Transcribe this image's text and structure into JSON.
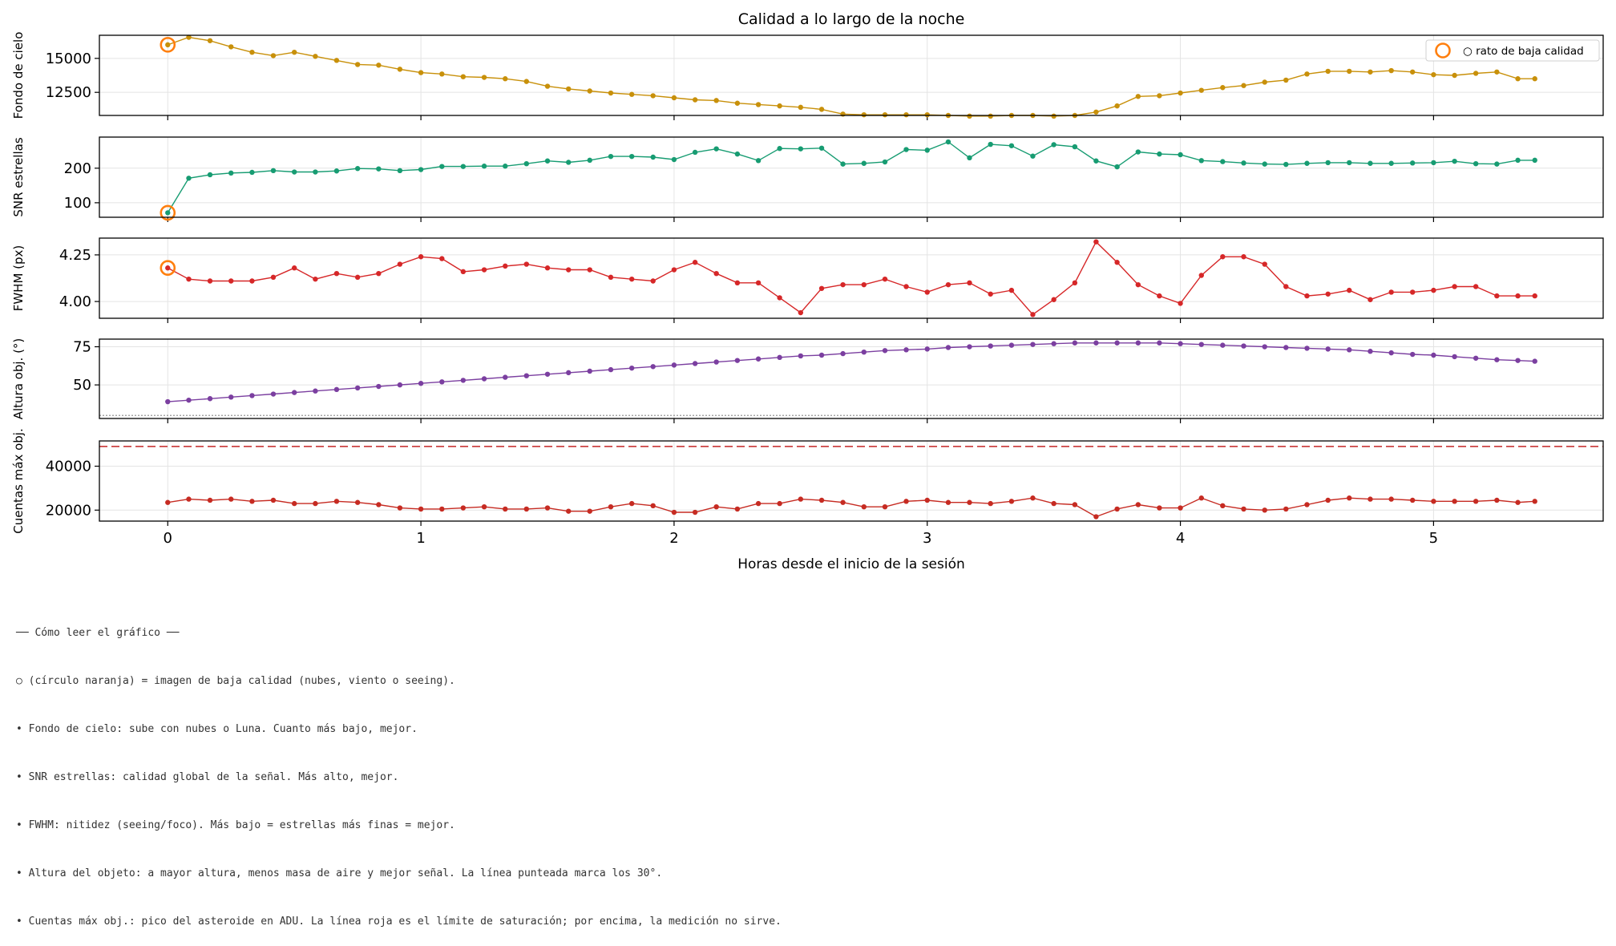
{
  "figure": {
    "title": "Calidad a lo largo de la noche",
    "xlabel": "Horas desde el inicio de la sesión",
    "legend_label": "○ rato de baja calidad"
  },
  "colors": {
    "sky": "#c8900a",
    "snr": "#179c72",
    "fwhm": "#d62728",
    "alt": "#7b3fa0",
    "counts": "#c62b22",
    "lowq": "#ff7f0e",
    "saturation": "#cc4444"
  },
  "chart_data": [
    {
      "type": "line",
      "ylabel": "Fondo de cielo",
      "yticks": [
        12500,
        15000
      ],
      "ylim": [
        10800,
        16700
      ],
      "xlim": [
        -0.27,
        5.67
      ],
      "xticks": [
        0,
        1,
        2,
        3,
        4,
        5
      ],
      "legend": "top-right",
      "series": [
        {
          "x": [
            0,
            0.083,
            0.167,
            0.25,
            0.333,
            0.417,
            0.5,
            0.583,
            0.667,
            0.75,
            0.833,
            0.917,
            1,
            1.083,
            1.167,
            1.25,
            1.333,
            1.417,
            1.5,
            1.583,
            1.667,
            1.75,
            1.833,
            1.917,
            2,
            2.083,
            2.167,
            2.25,
            2.333,
            2.417,
            2.5,
            2.583,
            2.667,
            2.75,
            2.833,
            2.917,
            3,
            3.083,
            3.167,
            3.25,
            3.333,
            3.417,
            3.5,
            3.583,
            3.667,
            3.75,
            3.833,
            3.917,
            4,
            4.083,
            4.167,
            4.25,
            4.333,
            4.417,
            4.5,
            4.583,
            4.667,
            4.75,
            4.833,
            4.917,
            5,
            5.083,
            5.167,
            5.25,
            5.333,
            5.4
          ],
          "values": [
            16000,
            16550,
            16300,
            15850,
            15450,
            15200,
            15450,
            15150,
            14850,
            14550,
            14500,
            14200,
            13950,
            13850,
            13650,
            13600,
            13500,
            13300,
            12950,
            12750,
            12600,
            12450,
            12350,
            12250,
            12100,
            11950,
            11900,
            11700,
            11600,
            11500,
            11400,
            11250,
            10900,
            10850,
            10850,
            10850,
            10850,
            10800,
            10750,
            10750,
            10800,
            10800,
            10750,
            10800,
            11050,
            11500,
            12200,
            12250,
            12450,
            12650,
            12850,
            13000,
            13250,
            13400,
            13850,
            14050,
            14050,
            14000,
            14100,
            14000,
            13800,
            13750,
            13900,
            14000,
            13500,
            13500
          ]
        }
      ],
      "lowq": [
        {
          "x": 0,
          "y": 16000
        }
      ]
    },
    {
      "type": "line",
      "ylabel": "SNR estrellas",
      "yticks": [
        100,
        200
      ],
      "ylim": [
        58,
        290
      ],
      "xlim": [
        -0.27,
        5.67
      ],
      "xticks": [
        0,
        1,
        2,
        3,
        4,
        5
      ],
      "series": [
        {
          "x": [
            0,
            0.083,
            0.167,
            0.25,
            0.333,
            0.417,
            0.5,
            0.583,
            0.667,
            0.75,
            0.833,
            0.917,
            1,
            1.083,
            1.167,
            1.25,
            1.333,
            1.417,
            1.5,
            1.583,
            1.667,
            1.75,
            1.833,
            1.917,
            2,
            2.083,
            2.167,
            2.25,
            2.333,
            2.417,
            2.5,
            2.583,
            2.667,
            2.75,
            2.833,
            2.917,
            3,
            3.083,
            3.167,
            3.25,
            3.333,
            3.417,
            3.5,
            3.583,
            3.667,
            3.75,
            3.833,
            3.917,
            4,
            4.083,
            4.167,
            4.25,
            4.333,
            4.417,
            4.5,
            4.583,
            4.667,
            4.75,
            4.833,
            4.917,
            5,
            5.083,
            5.167,
            5.25,
            5.333,
            5.4
          ],
          "values": [
            71,
            171,
            181,
            186,
            188,
            193,
            189,
            189,
            192,
            199,
            198,
            193,
            196,
            205,
            205,
            206,
            206,
            213,
            221,
            217,
            223,
            234,
            234,
            232,
            225,
            246,
            256,
            241,
            222,
            257,
            256,
            258,
            212,
            214,
            218,
            254,
            252,
            276,
            230,
            269,
            265,
            235,
            268,
            262,
            221,
            204,
            247,
            241,
            239,
            222,
            219,
            215,
            212,
            211,
            214,
            216,
            216,
            214,
            214,
            215,
            216,
            220,
            213,
            212,
            223,
            223
          ]
        }
      ],
      "lowq": [
        {
          "x": 0,
          "y": 71
        }
      ]
    },
    {
      "type": "line",
      "ylabel": "FWHM (px)",
      "yticks": [
        4.0,
        4.25
      ],
      "ylim": [
        3.91,
        4.34
      ],
      "xlim": [
        -0.27,
        5.67
      ],
      "xticks": [
        0,
        1,
        2,
        3,
        4,
        5
      ],
      "tick_format": "2dp",
      "series": [
        {
          "x": [
            0,
            0.083,
            0.167,
            0.25,
            0.333,
            0.417,
            0.5,
            0.583,
            0.667,
            0.75,
            0.833,
            0.917,
            1,
            1.083,
            1.167,
            1.25,
            1.333,
            1.417,
            1.5,
            1.583,
            1.667,
            1.75,
            1.833,
            1.917,
            2,
            2.083,
            2.167,
            2.25,
            2.333,
            2.417,
            2.5,
            2.583,
            2.667,
            2.75,
            2.833,
            2.917,
            3,
            3.083,
            3.167,
            3.25,
            3.333,
            3.417,
            3.5,
            3.583,
            3.667,
            3.75,
            3.833,
            3.917,
            4,
            4.083,
            4.167,
            4.25,
            4.333,
            4.417,
            4.5,
            4.583,
            4.667,
            4.75,
            4.833,
            4.917,
            5,
            5.083,
            5.167,
            5.25,
            5.333,
            5.4
          ],
          "values": [
            4.18,
            4.12,
            4.11,
            4.11,
            4.11,
            4.13,
            4.18,
            4.12,
            4.15,
            4.13,
            4.15,
            4.2,
            4.24,
            4.23,
            4.16,
            4.17,
            4.19,
            4.2,
            4.18,
            4.17,
            4.17,
            4.13,
            4.12,
            4.11,
            4.17,
            4.21,
            4.15,
            4.1,
            4.1,
            4.02,
            3.94,
            4.07,
            4.09,
            4.09,
            4.12,
            4.08,
            4.05,
            4.09,
            4.1,
            4.04,
            4.06,
            3.93,
            4.01,
            4.1,
            4.32,
            4.21,
            4.09,
            4.03,
            3.99,
            4.14,
            4.24,
            4.24,
            4.2,
            4.08,
            4.03,
            4.04,
            4.06,
            4.01,
            4.05,
            4.05,
            4.06,
            4.08,
            4.08,
            4.03,
            4.03,
            4.03
          ]
        }
      ],
      "lowq": [
        {
          "x": 0,
          "y": 4.18
        }
      ]
    },
    {
      "type": "line",
      "ylabel": "Altura obj. (°)",
      "yticks": [
        50,
        75
      ],
      "ylim": [
        28,
        80
      ],
      "xlim": [
        -0.27,
        5.67
      ],
      "xticks": [
        0,
        1,
        2,
        3,
        4,
        5
      ],
      "reference_line": {
        "y": 30,
        "style": "dotted"
      },
      "series": [
        {
          "x": [
            0,
            0.083,
            0.167,
            0.25,
            0.333,
            0.417,
            0.5,
            0.583,
            0.667,
            0.75,
            0.833,
            0.917,
            1,
            1.083,
            1.167,
            1.25,
            1.333,
            1.417,
            1.5,
            1.583,
            1.667,
            1.75,
            1.833,
            1.917,
            2,
            2.083,
            2.167,
            2.25,
            2.333,
            2.417,
            2.5,
            2.583,
            2.667,
            2.75,
            2.833,
            2.917,
            3,
            3.083,
            3.167,
            3.25,
            3.333,
            3.417,
            3.5,
            3.583,
            3.667,
            3.75,
            3.833,
            3.917,
            4,
            4.083,
            4.167,
            4.25,
            4.333,
            4.417,
            4.5,
            4.583,
            4.667,
            4.75,
            4.833,
            4.917,
            5,
            5.083,
            5.167,
            5.25,
            5.333,
            5.4
          ],
          "values": [
            39,
            40,
            41,
            42,
            43,
            44,
            45,
            46,
            47,
            48,
            49,
            50,
            51,
            52,
            53,
            54,
            55,
            56,
            57,
            58,
            59,
            60,
            61,
            62,
            63,
            64,
            65,
            66,
            67,
            68,
            69,
            69.5,
            70.5,
            71.5,
            72.5,
            73,
            73.5,
            74.5,
            75,
            75.5,
            76,
            76.5,
            77,
            77.5,
            77.5,
            77.5,
            77.5,
            77.5,
            77,
            76.5,
            76,
            75.5,
            75,
            74.5,
            74,
            73.5,
            73,
            72,
            71,
            70,
            69.5,
            68.5,
            67.5,
            66.5,
            66,
            65.5
          ]
        }
      ]
    },
    {
      "type": "line",
      "ylabel": "Cuentas máx obj.",
      "yticks": [
        20000,
        40000
      ],
      "ylim": [
        15000,
        51500
      ],
      "xlim": [
        -0.27,
        5.67
      ],
      "xticks": [
        0,
        1,
        2,
        3,
        4,
        5
      ],
      "reference_line": {
        "y": 49000,
        "style": "dashed"
      },
      "series": [
        {
          "x": [
            0,
            0.083,
            0.167,
            0.25,
            0.333,
            0.417,
            0.5,
            0.583,
            0.667,
            0.75,
            0.833,
            0.917,
            1,
            1.083,
            1.167,
            1.25,
            1.333,
            1.417,
            1.5,
            1.583,
            1.667,
            1.75,
            1.833,
            1.917,
            2,
            2.083,
            2.167,
            2.25,
            2.333,
            2.417,
            2.5,
            2.583,
            2.667,
            2.75,
            2.833,
            2.917,
            3,
            3.083,
            3.167,
            3.25,
            3.333,
            3.417,
            3.5,
            3.583,
            3.667,
            3.75,
            3.833,
            3.917,
            4,
            4.083,
            4.167,
            4.25,
            4.333,
            4.417,
            4.5,
            4.583,
            4.667,
            4.75,
            4.833,
            4.917,
            5,
            5.083,
            5.167,
            5.25,
            5.333,
            5.4
          ],
          "values": [
            23500,
            25000,
            24500,
            25000,
            24000,
            24500,
            23000,
            23000,
            24000,
            23500,
            22500,
            21000,
            20500,
            20500,
            21000,
            21500,
            20500,
            20500,
            21000,
            19500,
            19500,
            21500,
            23000,
            22000,
            19000,
            19000,
            21500,
            20500,
            23000,
            23000,
            25000,
            24500,
            23500,
            21500,
            21500,
            24000,
            24500,
            23500,
            23500,
            23000,
            24000,
            25500,
            23000,
            22500,
            17000,
            20500,
            22500,
            21000,
            21000,
            25500,
            22000,
            20500,
            20000,
            20500,
            22500,
            24500,
            25500,
            25000,
            25000,
            24500,
            24000,
            24000,
            24000,
            24500,
            23500,
            24000
          ]
        }
      ]
    }
  ],
  "notes": [
    "── Cómo leer el gráfico ──",
    "○ (círculo naranja) = imagen de baja calidad (nubes, viento o seeing).",
    "• Fondo de cielo: sube con nubes o Luna. Cuanto más bajo, mejor.",
    "• SNR estrellas: calidad global de la señal. Más alto, mejor.",
    "• FWHM: nitidez (seeing/foco). Más bajo = estrellas más finas = mejor.",
    "• Altura del objeto: a mayor altura, menos masa de aire y mejor señal. La línea punteada marca los 30°.",
    "• Cuentas máx obj.: pico del asteroide en ADU. La línea roja es el límite de saturación; por encima, la medición no sirve."
  ]
}
